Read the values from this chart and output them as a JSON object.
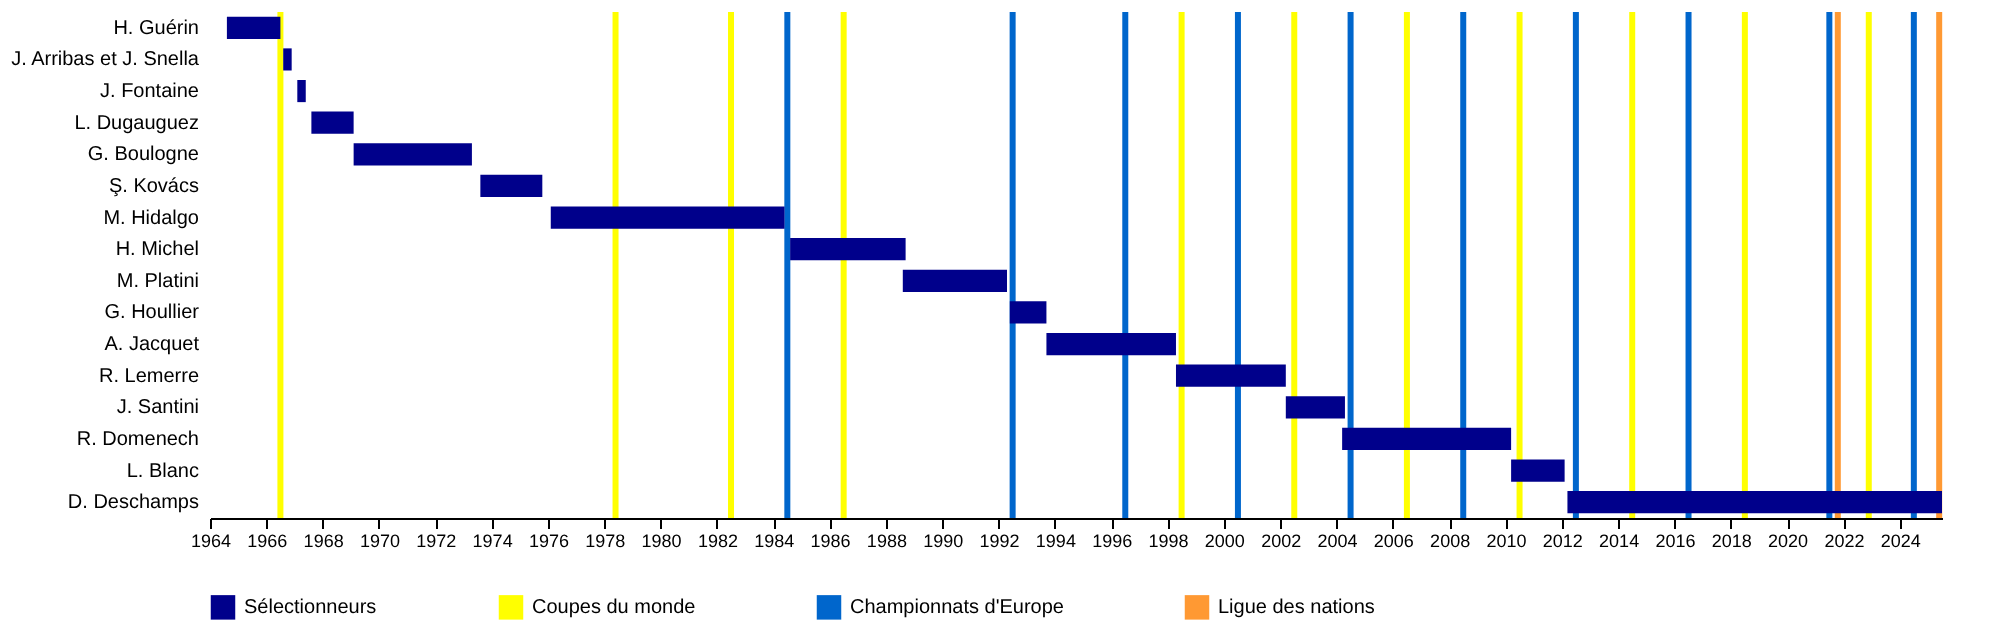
{
  "chart_data": {
    "type": "bar",
    "orientation": "horizontal",
    "categories": [
      "H. Guérin",
      "J. Arribas et J. Snella",
      "J. Fontaine",
      "L. Dugauguez",
      "G. Boulogne",
      "Ş. Kovács",
      "M. Hidalgo",
      "H. Michel",
      "M. Platini",
      "G. Houllier",
      "A. Jacquet",
      "R. Lemerre",
      "J. Santini",
      "R. Domenech",
      "L. Blanc",
      "D. Deschamps"
    ],
    "series": [
      {
        "name": "Sélectionneurs",
        "color": "#00008b",
        "values": [
          1.9,
          0.3,
          0.3,
          1.5,
          4.2,
          2.2,
          8.3,
          4.1,
          3.7,
          1.3,
          4.6,
          3.9,
          2.1,
          6.0,
          1.9,
          13.3
        ],
        "base": [
          1964.6,
          1966.6,
          1967.1,
          1967.6,
          1969.1,
          1973.6,
          1976.1,
          1984.6,
          1988.6,
          1992.4,
          1993.7,
          1998.3,
          2002.2,
          2004.2,
          2010.2,
          2012.2
        ]
      }
    ],
    "xlim": [
      1964,
      2025.5
    ],
    "xticks": [
      1964,
      1966,
      1968,
      1970,
      1972,
      1974,
      1976,
      1978,
      1980,
      1982,
      1984,
      1986,
      1988,
      1990,
      1992,
      1994,
      1996,
      1998,
      2000,
      2002,
      2004,
      2006,
      2008,
      2010,
      2012,
      2014,
      2016,
      2018,
      2020,
      2022,
      2024
    ],
    "ref_lines": [
      {
        "axis": "x",
        "value": 1966.5,
        "label": "Coupes du monde",
        "color": "#ffff00"
      },
      {
        "axis": "x",
        "value": 1978.4,
        "color": "#ffff00"
      },
      {
        "axis": "x",
        "value": 1982.5,
        "color": "#ffff00"
      },
      {
        "axis": "x",
        "value": 1986.5,
        "color": "#ffff00"
      },
      {
        "axis": "x",
        "value": 1998.5,
        "color": "#ffff00"
      },
      {
        "axis": "x",
        "value": 2002.5,
        "color": "#ffff00"
      },
      {
        "axis": "x",
        "value": 2006.5,
        "color": "#ffff00"
      },
      {
        "axis": "x",
        "value": 2010.5,
        "color": "#ffff00"
      },
      {
        "axis": "x",
        "value": 2014.5,
        "color": "#ffff00"
      },
      {
        "axis": "x",
        "value": 2018.5,
        "color": "#ffff00"
      },
      {
        "axis": "x",
        "value": 2022.9,
        "color": "#ffff00"
      },
      {
        "axis": "x",
        "value": 1984.5,
        "label": "Championnats d'Europe",
        "color": "#0066cc"
      },
      {
        "axis": "x",
        "value": 1992.5,
        "color": "#0066cc"
      },
      {
        "axis": "x",
        "value": 1996.5,
        "color": "#0066cc"
      },
      {
        "axis": "x",
        "value": 2000.5,
        "color": "#0066cc"
      },
      {
        "axis": "x",
        "value": 2004.5,
        "color": "#0066cc"
      },
      {
        "axis": "x",
        "value": 2008.5,
        "color": "#0066cc"
      },
      {
        "axis": "x",
        "value": 2012.5,
        "color": "#0066cc"
      },
      {
        "axis": "x",
        "value": 2016.5,
        "color": "#0066cc"
      },
      {
        "axis": "x",
        "value": 2021.5,
        "color": "#0066cc"
      },
      {
        "axis": "x",
        "value": 2024.5,
        "color": "#0066cc"
      },
      {
        "axis": "x",
        "value": 2021.8,
        "label": "Ligue des nations",
        "color": "#ff9933"
      },
      {
        "axis": "x",
        "value": 2025.4,
        "color": "#ff9933"
      }
    ],
    "legend": "bottom"
  }
}
